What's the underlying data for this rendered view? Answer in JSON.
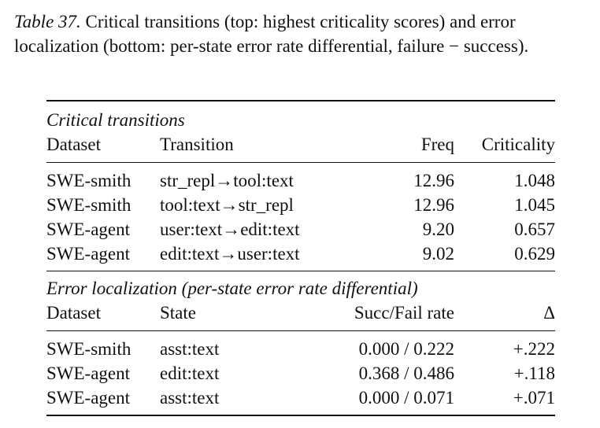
{
  "caption": {
    "label": "Table 37.",
    "text": "Critical transitions (top: highest criticality scores) and error localization (bottom: per-state error rate differential, failure − success)."
  },
  "critical": {
    "title": "Critical transitions",
    "headers": [
      "Dataset",
      "Transition",
      "Freq",
      "Criticality"
    ],
    "rows": [
      [
        "SWE-smith",
        "str_repl→tool:text",
        "12.96",
        "1.048"
      ],
      [
        "SWE-smith",
        "tool:text→str_repl",
        "12.96",
        "1.045"
      ],
      [
        "SWE-agent",
        "user:text→edit:text",
        "9.20",
        "0.657"
      ],
      [
        "SWE-agent",
        "edit:text→user:text",
        "9.02",
        "0.629"
      ]
    ]
  },
  "errors": {
    "title": "Error localization (per-state error rate differential)",
    "headers": [
      "Dataset",
      "State",
      "Succ/Fail rate",
      "Δ"
    ],
    "rows": [
      [
        "SWE-smith",
        "asst:text",
        "0.000 / 0.222",
        "+.222"
      ],
      [
        "SWE-agent",
        "edit:text",
        "0.368 / 0.486",
        "+.118"
      ],
      [
        "SWE-agent",
        "asst:text",
        "0.000 / 0.071",
        "+.071"
      ]
    ]
  }
}
